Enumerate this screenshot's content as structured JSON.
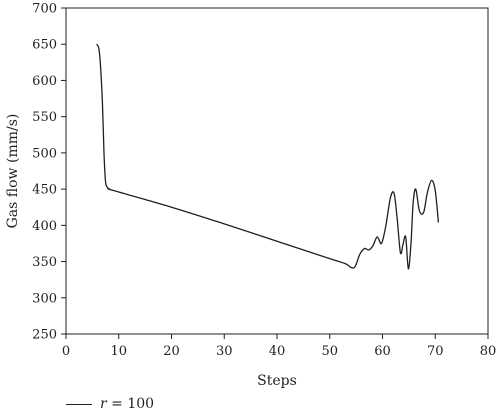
{
  "chart_data": {
    "type": "line",
    "xlabel": "Steps",
    "ylabel": "Gas flow (mm/s)",
    "xlim": [
      0,
      80
    ],
    "ylim": [
      250,
      700
    ],
    "xticks": [
      0,
      10,
      20,
      30,
      40,
      50,
      60,
      70,
      80
    ],
    "yticks": [
      250,
      300,
      350,
      400,
      450,
      500,
      550,
      600,
      650,
      700
    ],
    "grid": false,
    "legend_placement": "bottom-left",
    "series": [
      {
        "name_var": "r",
        "name_rest": " = 100",
        "color": "#231f20",
        "x": [
          5.8,
          6.2,
          6.5,
          6.9,
          7.2,
          7.5,
          7.9,
          8.3,
          9.0,
          20.0,
          30.0,
          40.0,
          50.0,
          53.0,
          54.0,
          54.8,
          55.7,
          56.6,
          57.4,
          58.2,
          59.0,
          59.8,
          60.6,
          61.5,
          62.2,
          62.8,
          63.4,
          63.9,
          64.4,
          64.9,
          65.4,
          65.8,
          66.3,
          67.0,
          67.8,
          68.5,
          69.3,
          70.0,
          70.6
        ],
        "y": [
          650,
          645,
          625,
          570,
          500,
          460,
          452,
          450,
          448,
          425,
          402,
          378,
          354,
          347,
          342,
          343,
          360,
          368,
          366,
          372,
          384,
          375,
          398,
          438,
          444,
          408,
          362,
          374,
          384,
          340,
          375,
          430,
          450,
          420,
          418,
          445,
          462,
          448,
          404
        ]
      }
    ]
  }
}
